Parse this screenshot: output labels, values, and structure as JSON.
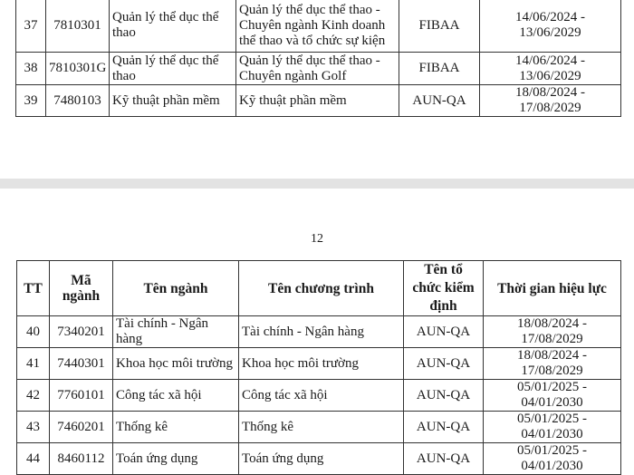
{
  "page_top": {
    "rows": [
      {
        "tt": "37",
        "ma": "7810301",
        "nganh": "Quản lý thể dục thể thao",
        "chuong_trinh": "Quản lý thể dục thể thao - Chuyên ngành Kinh doanh thể thao và tổ chức sự kiện",
        "kiem_dinh": "FIBAA",
        "hieu_luc": "14/06/2024 - 13/06/2029"
      },
      {
        "tt": "38",
        "ma": "7810301G",
        "nganh": "Quản lý thể dục thể thao",
        "chuong_trinh": "Quản lý thể dục thể thao - Chuyên ngành Golf",
        "kiem_dinh": "FIBAA",
        "hieu_luc": "14/06/2024 - 13/06/2029"
      },
      {
        "tt": "39",
        "ma": "7480103",
        "nganh": "Kỹ thuật phần mềm",
        "chuong_trinh": "Kỹ thuật phần mềm",
        "kiem_dinh": "AUN-QA",
        "hieu_luc": "18/08/2024 - 17/08/2029"
      }
    ]
  },
  "page_bottom": {
    "page_number": "12",
    "headers": {
      "tt": "TT",
      "ma": "Mã ngành",
      "nganh": "Tên ngành",
      "chuong_trinh": "Tên chương trình",
      "kiem_dinh": "Tên tổ chức kiểm định",
      "hieu_luc": "Thời gian hiệu lực"
    },
    "rows": [
      {
        "tt": "40",
        "ma": "7340201",
        "nganh": "Tài chính - Ngân hàng",
        "chuong_trinh": "Tài chính - Ngân hàng",
        "kiem_dinh": "AUN-QA",
        "hieu_luc": "18/08/2024 - 17/08/2029"
      },
      {
        "tt": "41",
        "ma": "7440301",
        "nganh": "Khoa học môi trường",
        "chuong_trinh": "Khoa học môi trường",
        "kiem_dinh": "AUN-QA",
        "hieu_luc": "18/08/2024 - 17/08/2029"
      },
      {
        "tt": "42",
        "ma": "7760101",
        "nganh": "Công tác xã hội",
        "chuong_trinh": "Công tác xã hội",
        "kiem_dinh": "AUN-QA",
        "hieu_luc": "05/01/2025 - 04/01/2030"
      },
      {
        "tt": "43",
        "ma": "7460201",
        "nganh": "Thống kê",
        "chuong_trinh": "Thống kê",
        "kiem_dinh": "AUN-QA",
        "hieu_luc": "05/01/2025 - 04/01/2030"
      },
      {
        "tt": "44",
        "ma": "8460112",
        "nganh": "Toán ứng dụng",
        "chuong_trinh": "Toán ứng dụng",
        "kiem_dinh": "AUN-QA",
        "hieu_luc": "05/01/2025 - 04/01/2030"
      }
    ]
  }
}
